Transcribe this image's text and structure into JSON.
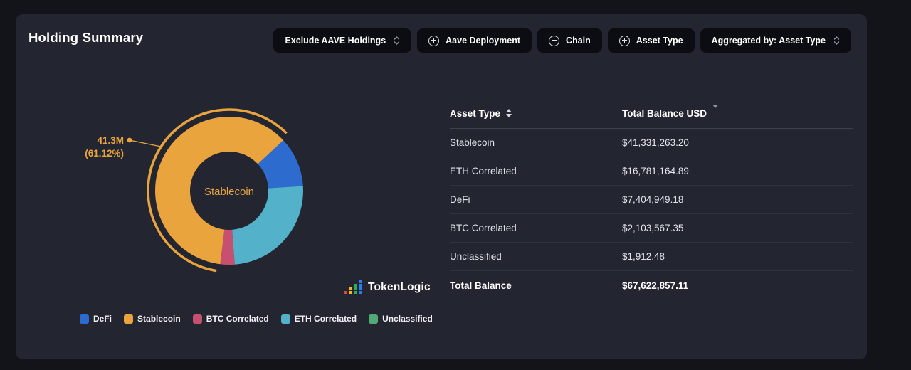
{
  "page": {
    "title": "Holding Summary"
  },
  "toolbar": {
    "exclude_select": {
      "label": "Exclude AAVE Holdings",
      "icon": "chevron-up-down"
    },
    "add_buttons": [
      {
        "label": "Aave Deployment",
        "icon": "plus-circle"
      },
      {
        "label": "Chain",
        "icon": "plus-circle"
      },
      {
        "label": "Asset Type",
        "icon": "plus-circle"
      }
    ],
    "aggregated_select": {
      "label": "Aggregated by: Asset Type",
      "icon": "chevron-up-down"
    }
  },
  "chart_data": {
    "type": "pie",
    "subtype": "donut",
    "unit": "USD",
    "start_angle_deg": 47,
    "total": 67622857.11,
    "series": [
      {
        "name": "DeFi",
        "value": 7404949.18,
        "percent": 10.95,
        "color": "#2d6bce"
      },
      {
        "name": "ETH Correlated",
        "value": 16781164.89,
        "percent": 24.82,
        "color": "#53b1c9"
      },
      {
        "name": "BTC Correlated",
        "value": 2103567.35,
        "percent": 3.11,
        "color": "#c75070"
      },
      {
        "name": "Unclassified",
        "value": 1912.48,
        "percent": 0.003,
        "color": "#53a877"
      },
      {
        "name": "Stablecoin",
        "value": 41331263.2,
        "percent": 61.12,
        "color": "#eaa43e"
      }
    ],
    "center_label": "Stablecoin",
    "highlighted_slice": "Stablecoin",
    "callout": {
      "line1": "41.3M",
      "line2": "(61.12%)",
      "target_slice": "Stablecoin"
    },
    "legend_position": "bottom",
    "legend": [
      {
        "label": "DeFi",
        "color": "#2d6bce"
      },
      {
        "label": "Stablecoin",
        "color": "#eaa43e"
      },
      {
        "label": "BTC Correlated",
        "color": "#c75070"
      },
      {
        "label": "ETH Correlated",
        "color": "#53b1c9"
      },
      {
        "label": "Unclassified",
        "color": "#53a877"
      }
    ]
  },
  "table": {
    "columns": [
      {
        "label": "Asset Type",
        "sort_icon": "both"
      },
      {
        "label": "Total Balance USD",
        "sort_icon": "desc"
      }
    ],
    "rows": [
      {
        "asset_type": "Stablecoin",
        "total_balance_usd": "$41,331,263.20"
      },
      {
        "asset_type": "ETH Correlated",
        "total_balance_usd": "$16,781,164.89"
      },
      {
        "asset_type": "DeFi",
        "total_balance_usd": "$7,404,949.18"
      },
      {
        "asset_type": "BTC Correlated",
        "total_balance_usd": "$2,103,567.35"
      },
      {
        "asset_type": "Unclassified",
        "total_balance_usd": "$1,912.48"
      }
    ],
    "footer": {
      "label": "Total Balance",
      "value": "$67,622,857.11"
    }
  },
  "branding": {
    "logo_text": "TokenLogic"
  },
  "colors": {
    "card_bg": "#232531",
    "page_bg": "#131419",
    "button_bg": "#0c0d12",
    "accent_orange": "#eaa43e",
    "row_divider": "#30333e"
  }
}
